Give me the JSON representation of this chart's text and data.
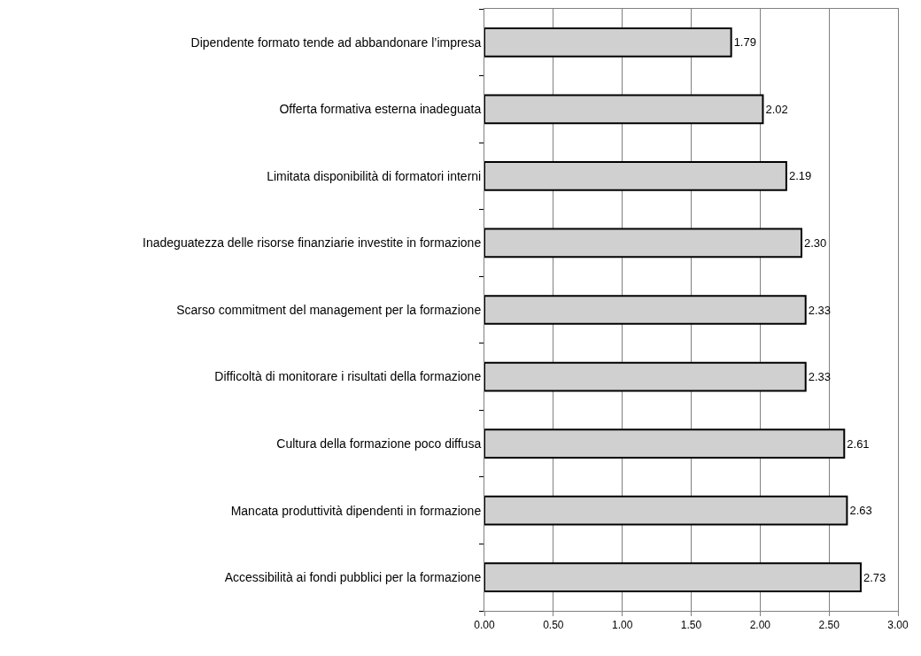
{
  "chart_data": {
    "type": "bar",
    "orientation": "horizontal",
    "categories": [
      "Dipendente formato tende ad abbandonare l’impresa",
      "Offerta formativa esterna inadeguata",
      "Limitata disponibilità di formatori interni",
      "Inadeguatezza delle risorse finanziarie investite in formazione",
      "Scarso commitment del management per la formazione",
      "Difficoltà di monitorare i risultati della formazione",
      "Cultura della formazione poco diffusa",
      "Mancata produttività dipendenti in formazione",
      "Accessibilità ai fondi pubblici per la formazione"
    ],
    "values": [
      1.79,
      2.02,
      2.19,
      2.3,
      2.33,
      2.33,
      2.61,
      2.63,
      2.73
    ],
    "value_labels": [
      "1.79",
      "2.02",
      "2.19",
      "2.30",
      "2.33",
      "2.33",
      "2.61",
      "2.63",
      "2.73"
    ],
    "color": "#d0d0d0",
    "xlim": [
      0,
      3
    ],
    "xticks": [
      {
        "value": 0,
        "label": "0.00"
      },
      {
        "value": 0.5,
        "label": "0.50"
      },
      {
        "value": 1,
        "label": "1.00"
      },
      {
        "value": 1.5,
        "label": "1.50"
      },
      {
        "value": 2,
        "label": "2.00"
      },
      {
        "value": 2.5,
        "label": "2.50"
      },
      {
        "value": 3,
        "label": "3.00"
      }
    ],
    "grid": "x"
  }
}
